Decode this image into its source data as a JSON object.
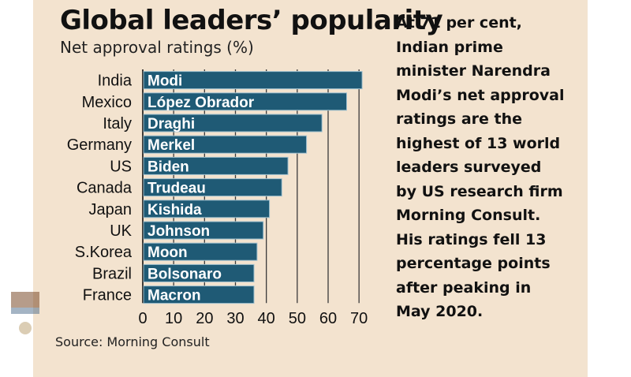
{
  "title": "Global leaders’ popularity",
  "subtitle": "Net approval ratings (%)",
  "source": "Source: Morning Consult",
  "side_text": "At 71 per cent, Indian prime minister Narendra Modi’s net approval ratings are the highest of 13 world leaders surveyed by US research firm Morning Consult. His ratings fell 13 percentage points after peaking in May 2020.",
  "colors": {
    "background": "#f3e3cf",
    "bar": "#1f5a75",
    "bar_border": "#9fc0cf",
    "grid": "#3a3a3a"
  },
  "chart_data": {
    "type": "bar",
    "orientation": "horizontal",
    "categories": [
      "India",
      "Mexico",
      "Italy",
      "Germany",
      "US",
      "Canada",
      "Japan",
      "UK",
      "S.Korea",
      "Brazil",
      "France"
    ],
    "leaders": [
      "Modi",
      "López Obrador",
      "Draghi",
      "Merkel",
      "Biden",
      "Trudeau",
      "Kishida",
      "Johnson",
      "Moon",
      "Bolsonaro",
      "Macron"
    ],
    "values": [
      71,
      66,
      58,
      53,
      47,
      45,
      41,
      39,
      37,
      36,
      36
    ],
    "xticks": [
      0,
      10,
      20,
      30,
      40,
      50,
      60,
      70
    ],
    "xlim": [
      0,
      72
    ],
    "title": "Global leaders’ popularity",
    "xlabel": "",
    "ylabel": "",
    "grid": "vertical"
  }
}
